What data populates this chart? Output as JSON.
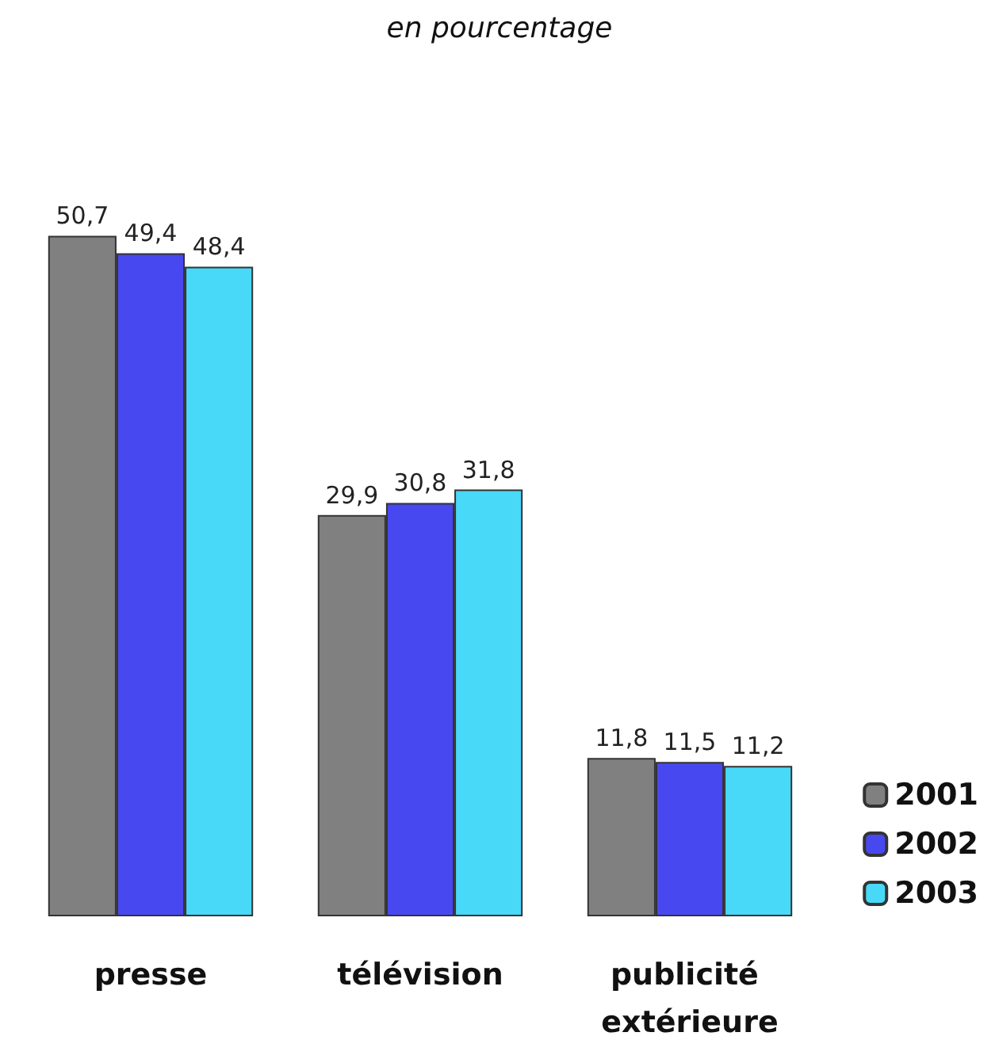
{
  "chart_data": {
    "type": "bar",
    "title": "en pourcentage",
    "categories": [
      "presse",
      "télévision",
      "publicité extérieure"
    ],
    "series": [
      {
        "name": "2001",
        "color": "#808080",
        "values": [
          50.7,
          29.9,
          11.8
        ],
        "value_labels": [
          "50,7",
          "29,9",
          "11,8"
        ]
      },
      {
        "name": "2002",
        "color": "#4848f0",
        "values": [
          49.4,
          30.8,
          11.5
        ],
        "value_labels": [
          "49,4",
          "30,8",
          "11,5"
        ]
      },
      {
        "name": "2003",
        "color": "#48d8f8",
        "values": [
          48.4,
          31.8,
          11.2
        ],
        "value_labels": [
          "48,4",
          "31,8",
          "11,2"
        ]
      }
    ],
    "legend": "bottom right"
  }
}
